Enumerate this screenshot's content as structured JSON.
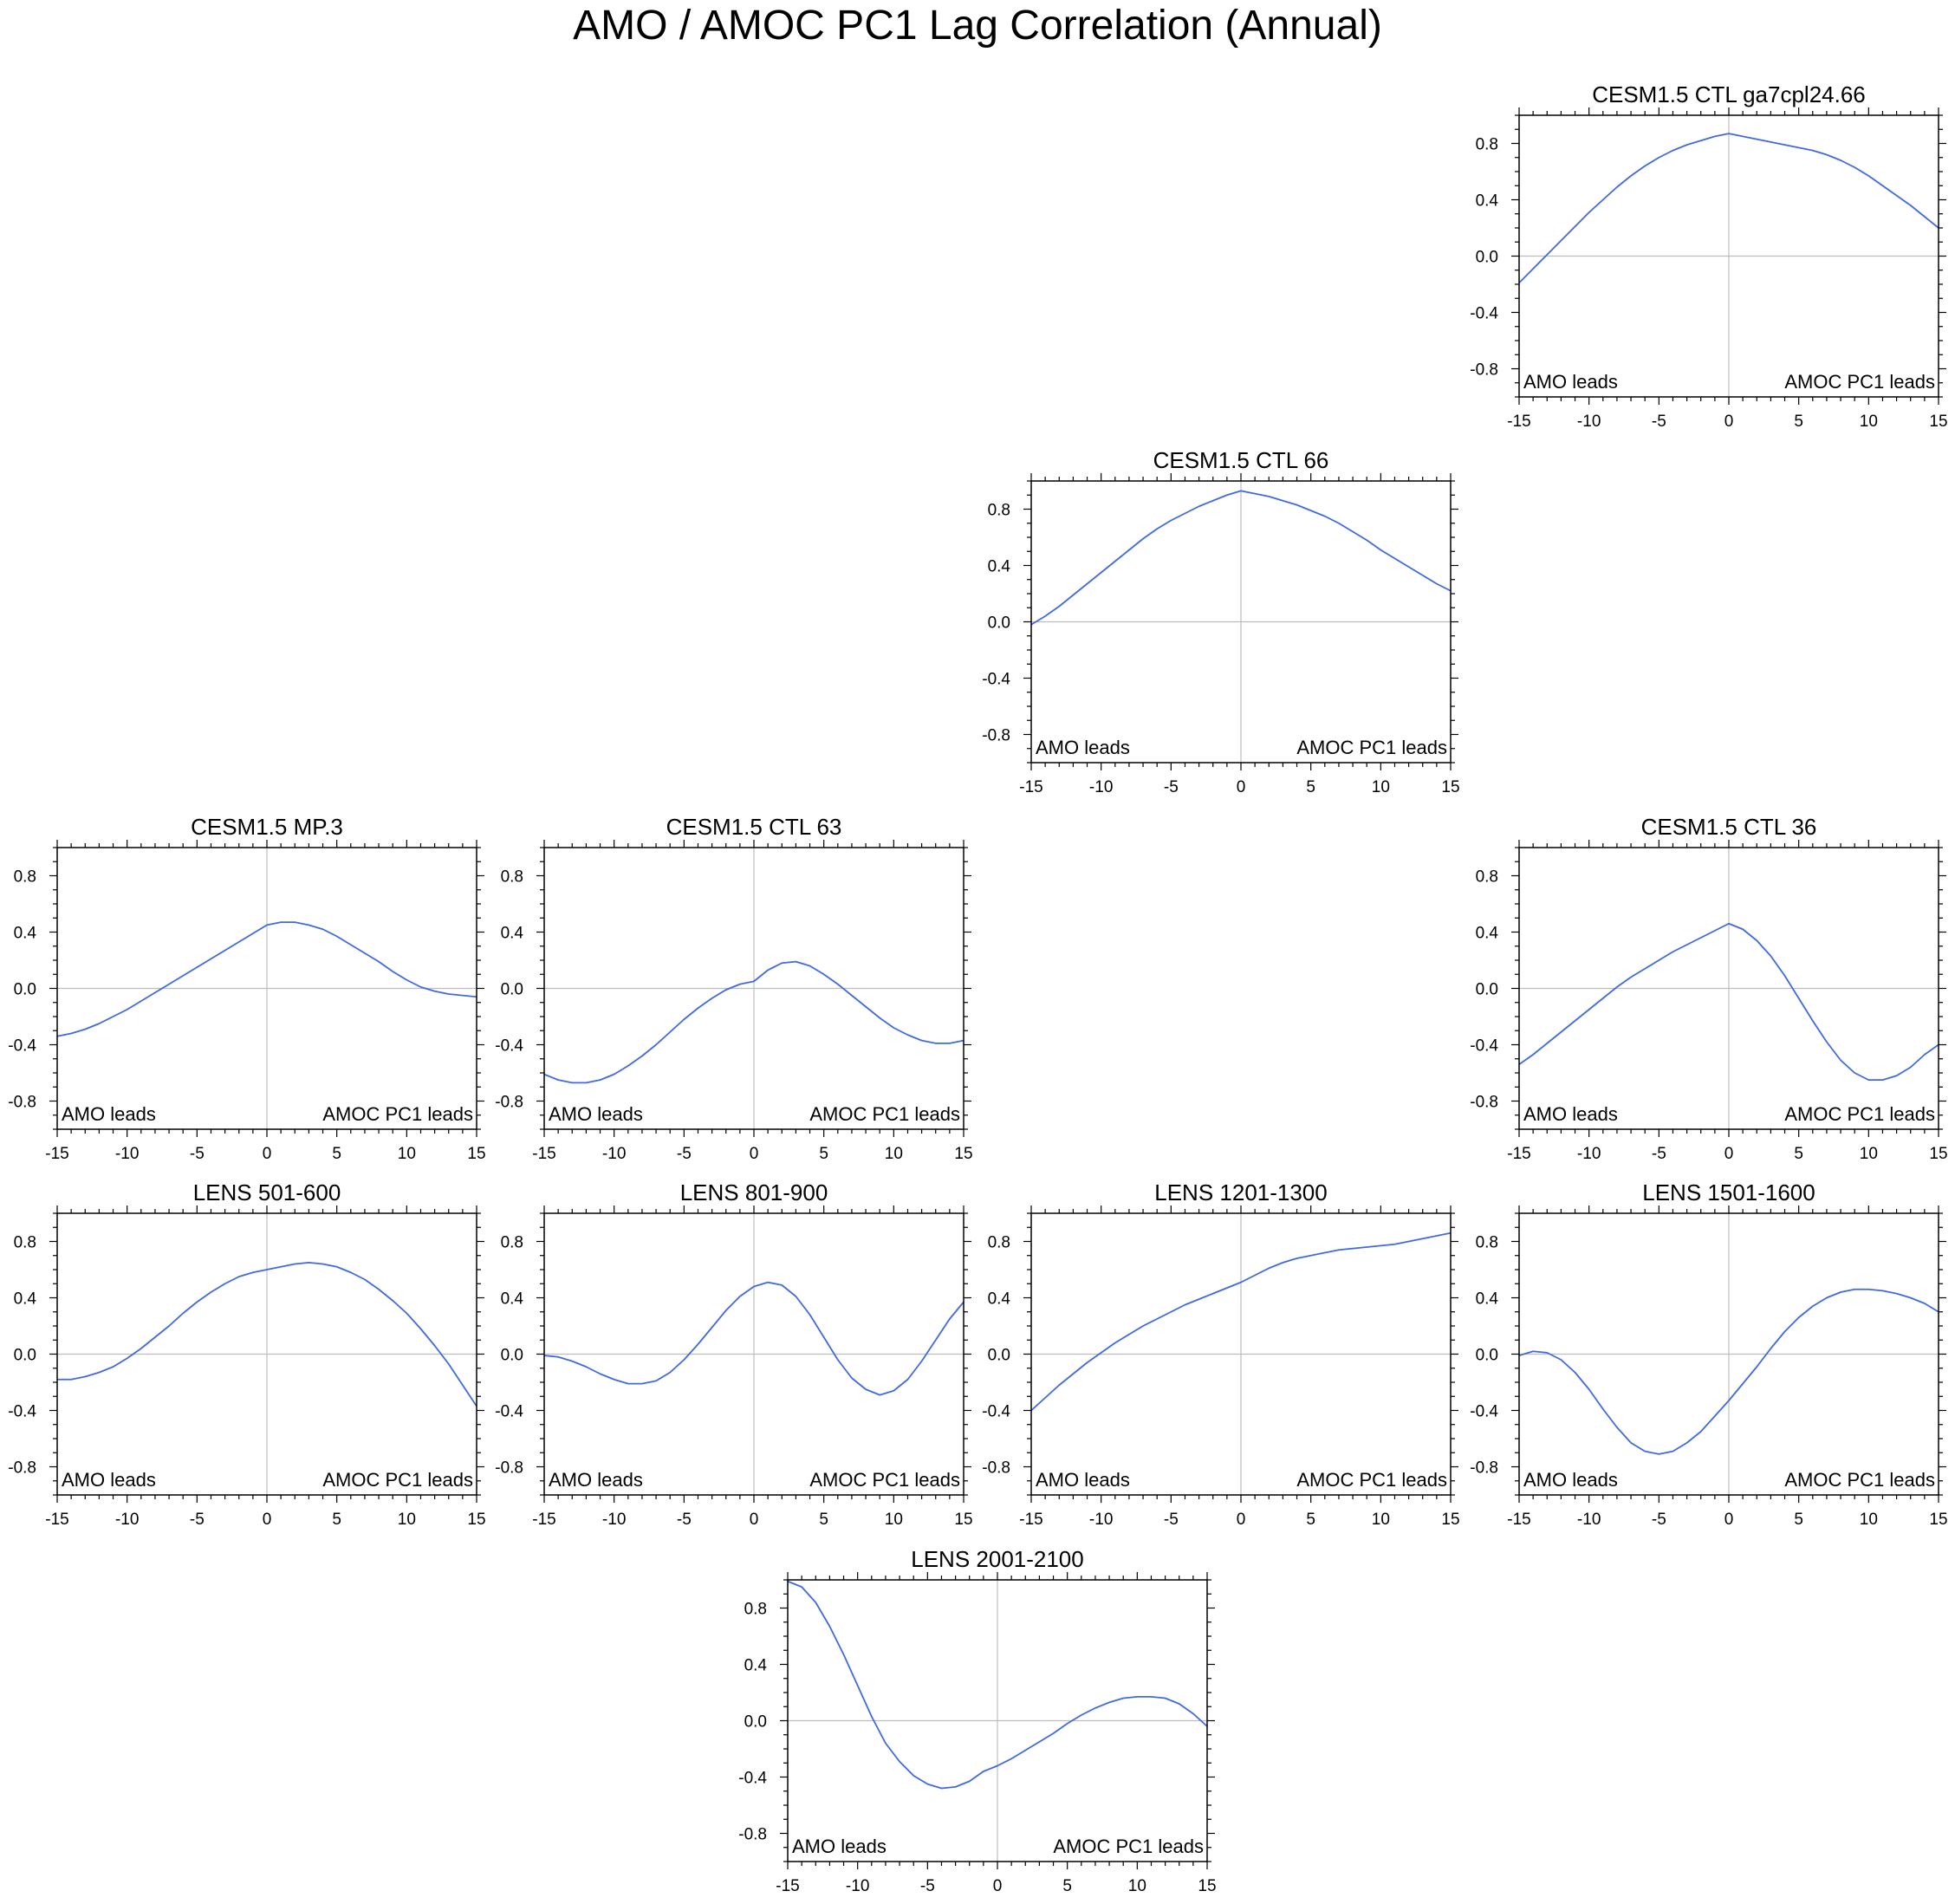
{
  "figure": {
    "title": "AMO / AMOC PC1 Lag Correlation (Annual)",
    "line_color": "#4169e1",
    "frame_color": "#000000",
    "reference_line_color": "#bdbdbd"
  },
  "chart_data": [
    {
      "type": "line",
      "title": "CESM1.5 CTL ga7cpl24.66",
      "xlim": [
        -15,
        15
      ],
      "ylim": [
        -1,
        1
      ],
      "x_ticks": [
        "-15",
        "-10",
        "-5",
        "0",
        "5",
        "10",
        "15"
      ],
      "y_ticks": [
        "0.8",
        "0.4",
        "0.0",
        "-0.4",
        "-0.8"
      ],
      "left_label": "AMO leads",
      "right_label": "AMOC PC1 leads",
      "x": [
        -15,
        -14,
        -13,
        -12,
        -11,
        -10,
        -9,
        -8,
        -7,
        -6,
        -5,
        -4,
        -3,
        -2,
        -1,
        0,
        1,
        2,
        3,
        4,
        5,
        6,
        7,
        8,
        9,
        10,
        11,
        12,
        13,
        14,
        15
      ],
      "values": [
        -0.19,
        -0.09,
        0.01,
        0.11,
        0.21,
        0.31,
        0.4,
        0.49,
        0.57,
        0.64,
        0.7,
        0.75,
        0.79,
        0.82,
        0.85,
        0.87,
        0.85,
        0.83,
        0.81,
        0.79,
        0.77,
        0.75,
        0.72,
        0.68,
        0.63,
        0.57,
        0.5,
        0.43,
        0.36,
        0.28,
        0.2
      ]
    },
    {
      "type": "line",
      "title": "CESM1.5 CTL 66",
      "xlim": [
        -15,
        15
      ],
      "ylim": [
        -1,
        1
      ],
      "x_ticks": [
        "-15",
        "-10",
        "-5",
        "0",
        "5",
        "10",
        "15"
      ],
      "y_ticks": [
        "0.8",
        "0.4",
        "0.0",
        "-0.4",
        "-0.8"
      ],
      "left_label": "AMO leads",
      "right_label": "AMOC PC1 leads",
      "x": [
        -15,
        -14,
        -13,
        -12,
        -11,
        -10,
        -9,
        -8,
        -7,
        -6,
        -5,
        -4,
        -3,
        -2,
        -1,
        0,
        1,
        2,
        3,
        4,
        5,
        6,
        7,
        8,
        9,
        10,
        11,
        12,
        13,
        14,
        15
      ],
      "values": [
        -0.02,
        0.04,
        0.11,
        0.19,
        0.27,
        0.35,
        0.43,
        0.51,
        0.59,
        0.66,
        0.72,
        0.77,
        0.82,
        0.86,
        0.9,
        0.93,
        0.91,
        0.89,
        0.86,
        0.83,
        0.79,
        0.75,
        0.7,
        0.64,
        0.58,
        0.51,
        0.45,
        0.39,
        0.33,
        0.27,
        0.22
      ]
    },
    {
      "type": "line",
      "title": "CESM1.5 MP.3",
      "xlim": [
        -15,
        15
      ],
      "ylim": [
        -1,
        1
      ],
      "x_ticks": [
        "-15",
        "-10",
        "-5",
        "0",
        "5",
        "10",
        "15"
      ],
      "y_ticks": [
        "0.8",
        "0.4",
        "0.0",
        "-0.4",
        "-0.8"
      ],
      "left_label": "AMO leads",
      "right_label": "AMOC PC1 leads",
      "x": [
        -15,
        -14,
        -13,
        -12,
        -11,
        -10,
        -9,
        -8,
        -7,
        -6,
        -5,
        -4,
        -3,
        -2,
        -1,
        0,
        1,
        2,
        3,
        4,
        5,
        6,
        7,
        8,
        9,
        10,
        11,
        12,
        13,
        14,
        15
      ],
      "values": [
        -0.34,
        -0.32,
        -0.29,
        -0.25,
        -0.2,
        -0.15,
        -0.09,
        -0.03,
        0.03,
        0.09,
        0.15,
        0.21,
        0.27,
        0.33,
        0.39,
        0.45,
        0.47,
        0.47,
        0.45,
        0.42,
        0.37,
        0.31,
        0.25,
        0.19,
        0.12,
        0.06,
        0.01,
        -0.02,
        -0.04,
        -0.05,
        -0.06
      ]
    },
    {
      "type": "line",
      "title": "CESM1.5 CTL 63",
      "xlim": [
        -15,
        15
      ],
      "ylim": [
        -1,
        1
      ],
      "x_ticks": [
        "-15",
        "-10",
        "-5",
        "0",
        "5",
        "10",
        "15"
      ],
      "y_ticks": [
        "0.8",
        "0.4",
        "0.0",
        "-0.4",
        "-0.8"
      ],
      "left_label": "AMO leads",
      "right_label": "AMOC PC1 leads",
      "x": [
        -15,
        -14,
        -13,
        -12,
        -11,
        -10,
        -9,
        -8,
        -7,
        -6,
        -5,
        -4,
        -3,
        -2,
        -1,
        0,
        1,
        2,
        3,
        4,
        5,
        6,
        7,
        8,
        9,
        10,
        11,
        12,
        13,
        14,
        15
      ],
      "values": [
        -0.61,
        -0.65,
        -0.67,
        -0.67,
        -0.65,
        -0.61,
        -0.55,
        -0.48,
        -0.4,
        -0.31,
        -0.22,
        -0.14,
        -0.07,
        -0.01,
        0.03,
        0.05,
        0.13,
        0.18,
        0.19,
        0.16,
        0.1,
        0.03,
        -0.05,
        -0.13,
        -0.21,
        -0.28,
        -0.33,
        -0.37,
        -0.39,
        -0.39,
        -0.37
      ]
    },
    {
      "type": "line",
      "title": "CESM1.5 CTL 36",
      "xlim": [
        -15,
        15
      ],
      "ylim": [
        -1,
        1
      ],
      "x_ticks": [
        "-15",
        "-10",
        "-5",
        "0",
        "5",
        "10",
        "15"
      ],
      "y_ticks": [
        "0.8",
        "0.4",
        "0.0",
        "-0.4",
        "-0.8"
      ],
      "left_label": "AMO leads",
      "right_label": "AMOC PC1 leads",
      "x": [
        -15,
        -14,
        -13,
        -12,
        -11,
        -10,
        -9,
        -8,
        -7,
        -6,
        -5,
        -4,
        -3,
        -2,
        -1,
        0,
        1,
        2,
        3,
        4,
        5,
        6,
        7,
        8,
        9,
        10,
        11,
        12,
        13,
        14,
        15
      ],
      "values": [
        -0.54,
        -0.47,
        -0.39,
        -0.31,
        -0.23,
        -0.15,
        -0.07,
        0.01,
        0.08,
        0.14,
        0.2,
        0.26,
        0.31,
        0.36,
        0.41,
        0.46,
        0.42,
        0.34,
        0.23,
        0.09,
        -0.07,
        -0.23,
        -0.38,
        -0.51,
        -0.6,
        -0.65,
        -0.65,
        -0.62,
        -0.56,
        -0.47,
        -0.4
      ]
    },
    {
      "type": "line",
      "title": "LENS 501-600",
      "xlim": [
        -15,
        15
      ],
      "ylim": [
        -1,
        1
      ],
      "x_ticks": [
        "-15",
        "-10",
        "-5",
        "0",
        "5",
        "10",
        "15"
      ],
      "y_ticks": [
        "0.8",
        "0.4",
        "0.0",
        "-0.4",
        "-0.8"
      ],
      "left_label": "AMO leads",
      "right_label": "AMOC PC1 leads",
      "x": [
        -15,
        -14,
        -13,
        -12,
        -11,
        -10,
        -9,
        -8,
        -7,
        -6,
        -5,
        -4,
        -3,
        -2,
        -1,
        0,
        1,
        2,
        3,
        4,
        5,
        6,
        7,
        8,
        9,
        10,
        11,
        12,
        13,
        14,
        15
      ],
      "values": [
        -0.18,
        -0.18,
        -0.16,
        -0.13,
        -0.09,
        -0.03,
        0.04,
        0.12,
        0.2,
        0.29,
        0.37,
        0.44,
        0.5,
        0.55,
        0.58,
        0.6,
        0.62,
        0.64,
        0.65,
        0.64,
        0.62,
        0.58,
        0.53,
        0.46,
        0.38,
        0.29,
        0.18,
        0.06,
        -0.07,
        -0.22,
        -0.37
      ]
    },
    {
      "type": "line",
      "title": "LENS 801-900",
      "xlim": [
        -15,
        15
      ],
      "ylim": [
        -1,
        1
      ],
      "x_ticks": [
        "-15",
        "-10",
        "-5",
        "0",
        "5",
        "10",
        "15"
      ],
      "y_ticks": [
        "0.8",
        "0.4",
        "0.0",
        "-0.4",
        "-0.8"
      ],
      "left_label": "AMO leads",
      "right_label": "AMOC PC1 leads",
      "x": [
        -15,
        -14,
        -13,
        -12,
        -11,
        -10,
        -9,
        -8,
        -7,
        -6,
        -5,
        -4,
        -3,
        -2,
        -1,
        0,
        1,
        2,
        3,
        4,
        5,
        6,
        7,
        8,
        9,
        10,
        11,
        12,
        13,
        14,
        15
      ],
      "values": [
        -0.01,
        -0.02,
        -0.05,
        -0.09,
        -0.14,
        -0.18,
        -0.21,
        -0.21,
        -0.19,
        -0.13,
        -0.04,
        0.07,
        0.19,
        0.31,
        0.41,
        0.48,
        0.51,
        0.49,
        0.41,
        0.28,
        0.12,
        -0.04,
        -0.17,
        -0.25,
        -0.29,
        -0.26,
        -0.18,
        -0.05,
        0.1,
        0.25,
        0.37
      ]
    },
    {
      "type": "line",
      "title": "LENS 1201-1300",
      "xlim": [
        -15,
        15
      ],
      "ylim": [
        -1,
        1
      ],
      "x_ticks": [
        "-15",
        "-10",
        "-5",
        "0",
        "5",
        "10",
        "15"
      ],
      "y_ticks": [
        "0.8",
        "0.4",
        "0.0",
        "-0.4",
        "-0.8"
      ],
      "left_label": "AMO leads",
      "right_label": "AMOC PC1 leads",
      "x": [
        -15,
        -14,
        -13,
        -12,
        -11,
        -10,
        -9,
        -8,
        -7,
        -6,
        -5,
        -4,
        -3,
        -2,
        -1,
        0,
        1,
        2,
        3,
        4,
        5,
        6,
        7,
        8,
        9,
        10,
        11,
        12,
        13,
        14,
        15
      ],
      "values": [
        -0.4,
        -0.31,
        -0.22,
        -0.14,
        -0.06,
        0.01,
        0.08,
        0.14,
        0.2,
        0.25,
        0.3,
        0.35,
        0.39,
        0.43,
        0.47,
        0.51,
        0.56,
        0.61,
        0.65,
        0.68,
        0.7,
        0.72,
        0.74,
        0.75,
        0.76,
        0.77,
        0.78,
        0.8,
        0.82,
        0.84,
        0.86
      ]
    },
    {
      "type": "line",
      "title": "LENS 1501-1600",
      "xlim": [
        -15,
        15
      ],
      "ylim": [
        -1,
        1
      ],
      "x_ticks": [
        "-15",
        "-10",
        "-5",
        "0",
        "5",
        "10",
        "15"
      ],
      "y_ticks": [
        "0.8",
        "0.4",
        "0.0",
        "-0.4",
        "-0.8"
      ],
      "left_label": "AMO leads",
      "right_label": "AMOC PC1 leads",
      "x": [
        -15,
        -14,
        -13,
        -12,
        -11,
        -10,
        -9,
        -8,
        -7,
        -6,
        -5,
        -4,
        -3,
        -2,
        -1,
        0,
        1,
        2,
        3,
        4,
        5,
        6,
        7,
        8,
        9,
        10,
        11,
        12,
        13,
        14,
        15
      ],
      "values": [
        -0.01,
        0.02,
        0.01,
        -0.04,
        -0.13,
        -0.25,
        -0.39,
        -0.52,
        -0.63,
        -0.69,
        -0.71,
        -0.69,
        -0.63,
        -0.55,
        -0.44,
        -0.33,
        -0.21,
        -0.09,
        0.04,
        0.16,
        0.26,
        0.34,
        0.4,
        0.44,
        0.46,
        0.46,
        0.45,
        0.43,
        0.4,
        0.36,
        0.3
      ]
    },
    {
      "type": "line",
      "title": "LENS 2001-2100",
      "xlim": [
        -15,
        15
      ],
      "ylim": [
        -1,
        1
      ],
      "x_ticks": [
        "-15",
        "-10",
        "-5",
        "0",
        "5",
        "10",
        "15"
      ],
      "y_ticks": [
        "0.8",
        "0.4",
        "0.0",
        "-0.4",
        "-0.8"
      ],
      "left_label": "AMO leads",
      "right_label": "AMOC PC1 leads",
      "x": [
        -15,
        -14,
        -13,
        -12,
        -11,
        -10,
        -9,
        -8,
        -7,
        -6,
        -5,
        -4,
        -3,
        -2,
        -1,
        0,
        1,
        2,
        3,
        4,
        5,
        6,
        7,
        8,
        9,
        10,
        11,
        12,
        13,
        14,
        15
      ],
      "values": [
        0.99,
        0.95,
        0.84,
        0.67,
        0.47,
        0.25,
        0.03,
        -0.16,
        -0.29,
        -0.39,
        -0.45,
        -0.48,
        -0.47,
        -0.43,
        -0.36,
        -0.32,
        -0.27,
        -0.21,
        -0.15,
        -0.09,
        -0.02,
        0.04,
        0.09,
        0.13,
        0.16,
        0.17,
        0.17,
        0.16,
        0.12,
        0.05,
        -0.04
      ]
    }
  ]
}
